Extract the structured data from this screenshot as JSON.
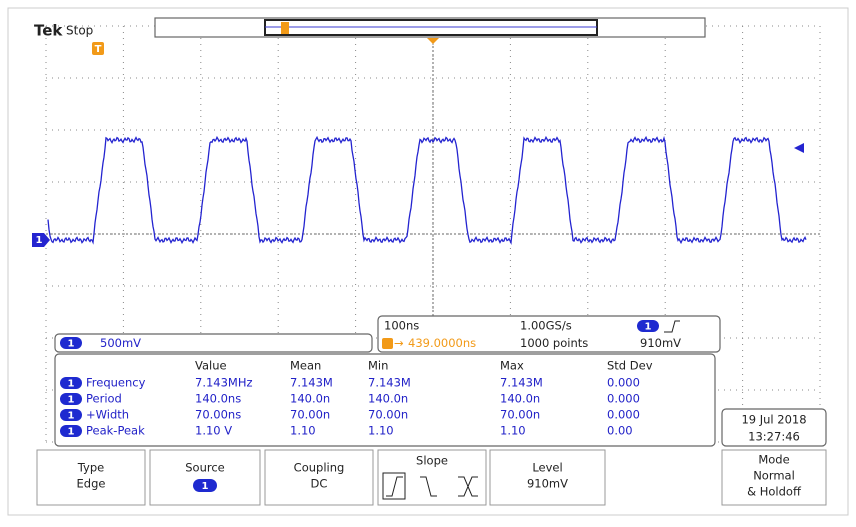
{
  "header": {
    "brand": "Tek",
    "status": "Stop"
  },
  "markers": {
    "trigger": "T",
    "channel": "1"
  },
  "channel_scale": {
    "channel": "1",
    "scale": "500mV"
  },
  "timebase": {
    "time_per_div": "100ns",
    "sample_rate": "1.00GS/s",
    "trigger_channel": "1",
    "trigger_position": "439.0000ns",
    "record_length": "1000 points",
    "trigger_level": "910mV"
  },
  "measurements": {
    "columns": [
      "Value",
      "Mean",
      "Min",
      "Max",
      "Std Dev"
    ],
    "rows": [
      {
        "channel": "1",
        "name": "Frequency",
        "cells": [
          "7.143MHz",
          "7.143M",
          "7.143M",
          "7.143M",
          "0.000"
        ]
      },
      {
        "channel": "1",
        "name": "Period",
        "cells": [
          "140.0ns",
          "140.0n",
          "140.0n",
          "140.0n",
          "0.000"
        ]
      },
      {
        "channel": "1",
        "name": "+Width",
        "cells": [
          "70.00ns",
          "70.00n",
          "70.00n",
          "70.00n",
          "0.000"
        ]
      },
      {
        "channel": "1",
        "name": "Peak-Peak",
        "cells": [
          "1.10 V",
          "1.10",
          "1.10",
          "1.10",
          "0.00"
        ]
      }
    ]
  },
  "datetime": {
    "date": "19 Jul  2018",
    "time": "13:27:46"
  },
  "menu": [
    {
      "label": "Type",
      "value": "Edge"
    },
    {
      "label": "Source",
      "value": "1"
    },
    {
      "label": "Coupling",
      "value": "DC"
    },
    {
      "label": "Slope"
    },
    {
      "label": "Level",
      "value": "910mV"
    },
    {
      "label": "Mode",
      "value": "Normal",
      "extra": "& Holdoff"
    }
  ]
}
